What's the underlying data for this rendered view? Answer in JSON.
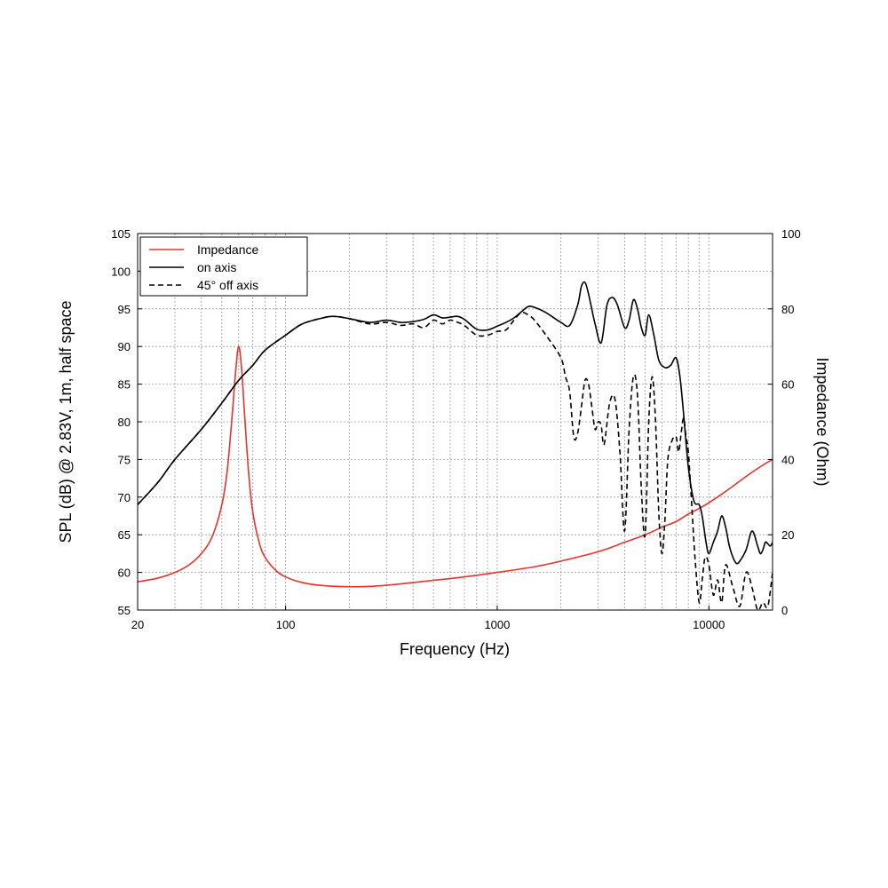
{
  "chart_data": {
    "type": "line",
    "xlabel": "Frequency (Hz)",
    "ylabel": "SPL (dB) @ 2.83V, 1m, half space",
    "y2label": "Impedance (Ohm)",
    "x_scale": "log",
    "xlim": [
      20,
      20000
    ],
    "ylim": [
      55,
      105
    ],
    "y2lim": [
      0,
      100
    ],
    "grid": true,
    "legend_position": "top-left",
    "x_tick_labels": [
      "20",
      "100",
      "1000",
      "10000"
    ],
    "x_ticks": [
      20,
      100,
      1000,
      10000
    ],
    "y_ticks": [
      55,
      60,
      65,
      70,
      75,
      80,
      85,
      90,
      95,
      100,
      105
    ],
    "y2_ticks": [
      0,
      20,
      40,
      60,
      80,
      100
    ],
    "series": [
      {
        "name": "Impedance",
        "axis": "right",
        "color": "#e8322d",
        "style": "solid",
        "x": [
          20,
          25,
          30,
          35,
          40,
          45,
          50,
          53,
          56,
          58,
          60,
          62,
          64,
          67,
          70,
          75,
          80,
          90,
          100,
          120,
          150,
          200,
          250,
          300,
          400,
          500,
          700,
          1000,
          1500,
          2000,
          3000,
          4000,
          5000,
          6000,
          7000,
          8000,
          9000,
          10000,
          12000,
          15000,
          18000,
          20000
        ],
        "y": [
          7.5,
          8.5,
          10,
          12,
          15,
          19.5,
          28,
          37,
          52,
          63,
          70,
          64,
          52,
          36,
          26,
          18,
          14,
          10.5,
          8.8,
          7.3,
          6.5,
          6.2,
          6.3,
          6.6,
          7.3,
          7.9,
          8.8,
          10,
          11.5,
          13,
          15.5,
          18,
          20,
          22,
          23.5,
          25.5,
          27,
          28.5,
          31.5,
          35.5,
          38.5,
          40
        ]
      },
      {
        "name": "on axis",
        "axis": "left",
        "color": "#000000",
        "style": "solid",
        "x": [
          20,
          25,
          30,
          40,
          50,
          60,
          70,
          80,
          100,
          120,
          150,
          170,
          200,
          250,
          300,
          350,
          400,
          450,
          500,
          550,
          600,
          650,
          700,
          800,
          900,
          1000,
          1100,
          1200,
          1300,
          1400,
          1500,
          1700,
          2000,
          2200,
          2400,
          2500,
          2600,
          2700,
          2900,
          3100,
          3300,
          3500,
          3700,
          4000,
          4200,
          4400,
          4600,
          4800,
          5000,
          5200,
          5500,
          5800,
          6200,
          6600,
          7000,
          7300,
          7600,
          8000,
          8500,
          9000,
          9300,
          9700,
          10000,
          10500,
          11000,
          11500,
          12000,
          12500,
          13000,
          13500,
          14000,
          15000,
          16000,
          17000,
          17500,
          18000,
          18500,
          19000,
          19500,
          20000
        ],
        "y": [
          69,
          72,
          75,
          79,
          82.5,
          85.5,
          87.5,
          89.5,
          91.5,
          93,
          93.8,
          94,
          93.7,
          93.2,
          93.5,
          93.2,
          93.3,
          93.6,
          94.2,
          93.8,
          93.9,
          94,
          93.6,
          92.3,
          92.2,
          92.7,
          93.2,
          93.8,
          94.6,
          95.3,
          95.2,
          94.5,
          93.2,
          92.8,
          95.5,
          98,
          98.5,
          97,
          93,
          90.5,
          95.5,
          96.5,
          95.5,
          92.5,
          93.5,
          96.2,
          95,
          92.5,
          91.5,
          94.2,
          91.5,
          88.2,
          87.2,
          87.5,
          88.5,
          86,
          81,
          74,
          69.5,
          69,
          67.5,
          64,
          62.5,
          64,
          65.5,
          67.5,
          66,
          63.5,
          62,
          61.2,
          61.5,
          63,
          65.5,
          63.5,
          62.5,
          63,
          64,
          63.8,
          63.5,
          64
        ]
      },
      {
        "name": "45° off axis",
        "axis": "left",
        "color": "#000000",
        "style": "dashed",
        "x": [
          20,
          25,
          30,
          40,
          50,
          60,
          70,
          80,
          100,
          120,
          150,
          170,
          200,
          250,
          300,
          350,
          400,
          450,
          500,
          550,
          600,
          650,
          700,
          800,
          900,
          1000,
          1100,
          1200,
          1300,
          1400,
          1500,
          1700,
          2000,
          2100,
          2200,
          2300,
          2400,
          2500,
          2600,
          2700,
          2800,
          2900,
          3000,
          3100,
          3200,
          3400,
          3600,
          3800,
          4000,
          4200,
          4400,
          4600,
          4800,
          5000,
          5200,
          5400,
          5600,
          5800,
          6000,
          6200,
          6400,
          6700,
          7000,
          7200,
          7400,
          7600,
          7800,
          8000,
          8300,
          8600,
          9000,
          9300,
          9600,
          10000,
          10500,
          11000,
          11500,
          12000,
          13000,
          14000,
          15000,
          16000,
          17000,
          18000,
          19000,
          20000
        ],
        "y": [
          69,
          72,
          75,
          79,
          82.5,
          85.5,
          87.5,
          89.5,
          91.5,
          93,
          93.8,
          94,
          93.7,
          93,
          93.2,
          92.8,
          93,
          92.5,
          93.5,
          93,
          93.5,
          93.2,
          92.8,
          91.5,
          91.5,
          92,
          92.2,
          93.5,
          94.5,
          94.2,
          93.5,
          91.5,
          88.5,
          86,
          84,
          78,
          78.5,
          82,
          85.5,
          85,
          82,
          79,
          80,
          79.5,
          77,
          82.5,
          83,
          76,
          65.5,
          79,
          86,
          83.5,
          71,
          65,
          80,
          86,
          80,
          68,
          62.5,
          67,
          75,
          77.5,
          78,
          76,
          78.5,
          80.5,
          78,
          76,
          69,
          62,
          56,
          59,
          62,
          61,
          57,
          59,
          56,
          61,
          58,
          55.5,
          60,
          58,
          55,
          56,
          55.5,
          60
        ]
      }
    ]
  }
}
